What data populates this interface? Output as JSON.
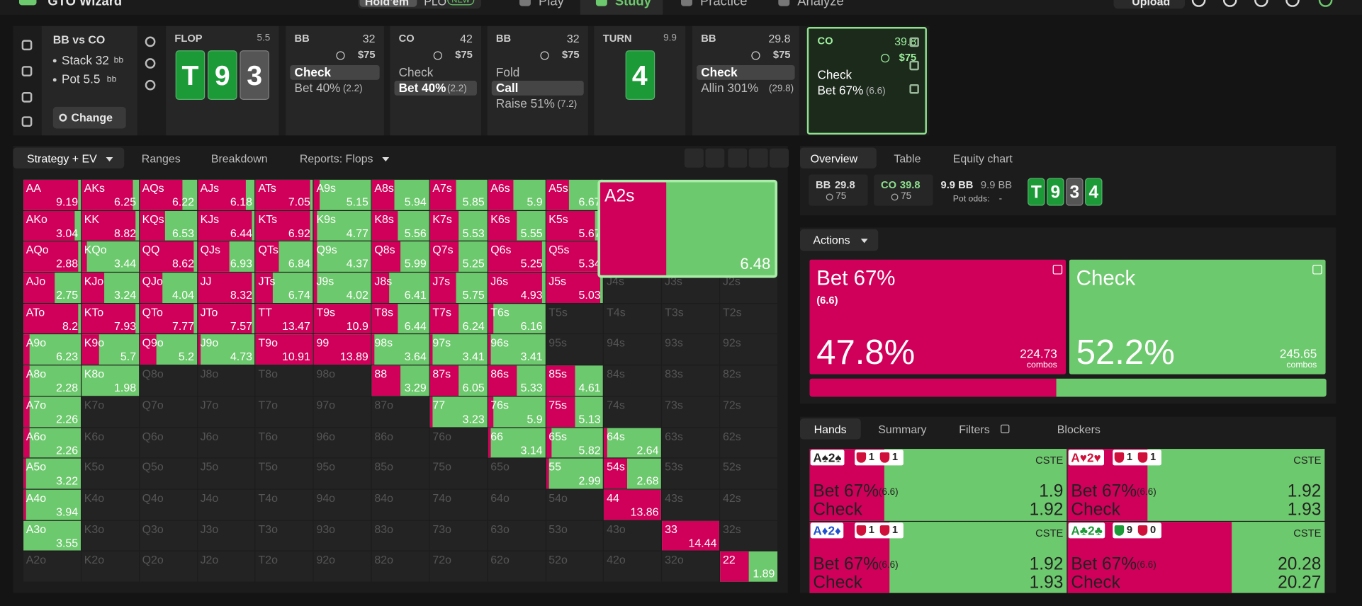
{
  "topbar": {
    "brand": "GTO Wizard",
    "modes": [
      "Hold'em",
      "PLO"
    ],
    "badge": "NEW",
    "nav": [
      "Play",
      "Study",
      "Practice",
      "Analyze"
    ],
    "upload": "Upload"
  },
  "spot": {
    "title": "BB vs CO",
    "stack": "Stack 32",
    "pot": "Pot 5.5",
    "unit": "bb",
    "button": "Change"
  },
  "line": [
    {
      "street": "FLOP",
      "pot": 5.5,
      "cards": [
        {
          "rank": "T",
          "color": "#1c9a38"
        },
        {
          "rank": "9",
          "color": "#1c9a38"
        },
        {
          "rank": "3",
          "color": "#555555"
        }
      ]
    },
    {
      "player": "BB",
      "stack": 32,
      "bet": "$75",
      "actions": [
        {
          "label": "Check",
          "selected": true
        },
        {
          "label": "Bet 40%",
          "size": "(2.2)"
        }
      ]
    },
    {
      "player": "CO",
      "stack": 42,
      "bet": "$75",
      "actions": [
        {
          "label": "Check"
        },
        {
          "label": "Bet 40%",
          "size": "(2.2)",
          "selected": true
        }
      ]
    },
    {
      "player": "BB",
      "stack": 32,
      "bet": "$75",
      "actions": [
        {
          "label": "Fold"
        },
        {
          "label": "Call",
          "selected": true
        },
        {
          "label": "Raise 51%",
          "size": "(7.2)"
        }
      ]
    },
    {
      "street": "TURN",
      "pot": 9.9,
      "cards": [
        {
          "rank": "4",
          "color": "#1c9a38"
        }
      ]
    },
    {
      "player": "BB",
      "stack": 29.8,
      "bet": "$75",
      "actions": [
        {
          "label": "Check",
          "selected": true
        },
        {
          "label": "Allin 301%",
          "size": "(29.8)"
        }
      ]
    },
    {
      "player": "CO",
      "stack": 39.8,
      "bet": "$75",
      "current": true,
      "actions": [
        {
          "label": "Check"
        },
        {
          "label": "Bet 67%",
          "size": "(6.6)"
        }
      ]
    }
  ],
  "strategy": {
    "tabs": [
      "Strategy + EV",
      "Ranges",
      "Breakdown",
      "Reports: Flops"
    ],
    "bet_color": "#d0005a",
    "check_color": "#6dc96d",
    "grid": [
      [
        {
          "hand": "AA",
          "ev": 9.19,
          "bet": 95
        },
        {
          "hand": "AKs",
          "ev": 6.25,
          "bet": 90
        },
        {
          "hand": "AQs",
          "ev": 6.22,
          "bet": 75
        },
        {
          "hand": "AJs",
          "ev": 6.18,
          "bet": 85
        },
        {
          "hand": "ATs",
          "ev": 7.05,
          "bet": 95
        },
        {
          "hand": "A9s",
          "ev": 5.15,
          "bet": 10
        },
        {
          "hand": "A8s",
          "ev": 5.94,
          "bet": 40
        },
        {
          "hand": "A7s",
          "ev": 5.85,
          "bet": 45
        },
        {
          "hand": "A6s",
          "ev": 5.9,
          "bet": 45
        },
        {
          "hand": "A5s",
          "ev": 6.67,
          "bet": 40
        },
        null,
        null,
        null
      ],
      [
        {
          "hand": "AKo",
          "ev": 3.04,
          "bet": 90
        },
        {
          "hand": "KK",
          "ev": 8.82,
          "bet": 95
        },
        {
          "hand": "KQs",
          "ev": 6.53,
          "bet": 45
        },
        {
          "hand": "KJs",
          "ev": 6.44,
          "bet": 95
        },
        {
          "hand": "KTs",
          "ev": 6.92,
          "bet": 95
        },
        {
          "hand": "K9s",
          "ev": 4.77,
          "bet": 5
        },
        {
          "hand": "K8s",
          "ev": 5.56,
          "bet": 45
        },
        {
          "hand": "K7s",
          "ev": 5.53,
          "bet": 50
        },
        {
          "hand": "K6s",
          "ev": 5.55,
          "bet": 50
        },
        {
          "hand": "K5s",
          "ev": 5.67,
          "bet": 85
        },
        null,
        null,
        null
      ],
      [
        {
          "hand": "AQo",
          "ev": 2.88,
          "bet": 95
        },
        {
          "hand": "KQo",
          "ev": 3.44,
          "bet": 10
        },
        {
          "hand": "QQ",
          "ev": 8.62,
          "bet": 95
        },
        {
          "hand": "QJs",
          "ev": 6.93,
          "bet": 55
        },
        {
          "hand": "QTs",
          "ev": 6.84,
          "bet": 40
        },
        {
          "hand": "Q9s",
          "ev": 4.37,
          "bet": 5
        },
        {
          "hand": "Q8s",
          "ev": 5.99,
          "bet": 50
        },
        {
          "hand": "Q7s",
          "ev": 5.25,
          "bet": 50
        },
        {
          "hand": "Q6s",
          "ev": 5.25,
          "bet": 95
        },
        {
          "hand": "Q5s",
          "ev": 5.34,
          "bet": 95
        },
        null,
        null,
        null
      ],
      [
        {
          "hand": "AJo",
          "ev": 2.75,
          "bet": 55
        },
        {
          "hand": "KJo",
          "ev": 3.24,
          "bet": 40
        },
        {
          "hand": "QJo",
          "ev": 4.04,
          "bet": 40
        },
        {
          "hand": "JJ",
          "ev": 8.32,
          "bet": 95
        },
        {
          "hand": "JTs",
          "ev": 6.74,
          "bet": 30
        },
        {
          "hand": "J9s",
          "ev": 4.02,
          "bet": 5
        },
        {
          "hand": "J8s",
          "ev": 6.41,
          "bet": 30
        },
        {
          "hand": "J7s",
          "ev": 5.75,
          "bet": 45
        },
        {
          "hand": "J6s",
          "ev": 4.93,
          "bet": 95
        },
        {
          "hand": "J5s",
          "ev": 5.03,
          "bet": 95
        },
        {
          "hand": "J4s"
        },
        {
          "hand": "J3s"
        },
        {
          "hand": "J2s"
        }
      ],
      [
        {
          "hand": "ATo",
          "ev": 8.2,
          "bet": 95
        },
        {
          "hand": "KTo",
          "ev": 7.93,
          "bet": 95
        },
        {
          "hand": "QTo",
          "ev": 7.77,
          "bet": 95
        },
        {
          "hand": "JTo",
          "ev": 7.57,
          "bet": 95
        },
        {
          "hand": "TT",
          "ev": 13.47,
          "bet": 100
        },
        {
          "hand": "T9s",
          "ev": 10.9,
          "bet": 100
        },
        {
          "hand": "T8s",
          "ev": 6.44,
          "bet": 45
        },
        {
          "hand": "T7s",
          "ev": 6.24,
          "bet": 50
        },
        {
          "hand": "T6s",
          "ev": 6.16,
          "bet": 10
        },
        {
          "hand": "T5s"
        },
        {
          "hand": "T4s"
        },
        {
          "hand": "T3s"
        },
        {
          "hand": "T2s"
        }
      ],
      [
        {
          "hand": "A9o",
          "ev": 6.23,
          "bet": 10
        },
        {
          "hand": "K9o",
          "ev": 5.7,
          "bet": 30
        },
        {
          "hand": "Q9o",
          "ev": 5.2,
          "bet": 30
        },
        {
          "hand": "J9o",
          "ev": 4.73,
          "bet": 5
        },
        {
          "hand": "T9o",
          "ev": 10.91,
          "bet": 100
        },
        {
          "hand": "99",
          "ev": 13.89,
          "bet": 100
        },
        {
          "hand": "98s",
          "ev": 3.64,
          "bet": 5
        },
        {
          "hand": "97s",
          "ev": 3.41,
          "bet": 5
        },
        {
          "hand": "96s",
          "ev": 3.41,
          "bet": 5
        },
        {
          "hand": "95s"
        },
        {
          "hand": "94s"
        },
        {
          "hand": "93s"
        },
        {
          "hand": "92s"
        }
      ],
      [
        {
          "hand": "A8o",
          "ev": 2.28,
          "bet": 10
        },
        {
          "hand": "K8o",
          "ev": 1.98,
          "bet": 0
        },
        {
          "hand": "Q8o"
        },
        {
          "hand": "J8o"
        },
        {
          "hand": "T8o"
        },
        {
          "hand": "98o"
        },
        {
          "hand": "88",
          "ev": 3.29,
          "bet": 50
        },
        {
          "hand": "87s",
          "ev": 6.05,
          "bet": 50
        },
        {
          "hand": "86s",
          "ev": 5.33,
          "bet": 50
        },
        {
          "hand": "85s",
          "ev": 4.61,
          "bet": 50
        },
        {
          "hand": "84s"
        },
        {
          "hand": "83s"
        },
        {
          "hand": "82s"
        }
      ],
      [
        {
          "hand": "A7o",
          "ev": 2.26,
          "bet": 10
        },
        {
          "hand": "K7o"
        },
        {
          "hand": "Q7o"
        },
        {
          "hand": "J7o"
        },
        {
          "hand": "T7o"
        },
        {
          "hand": "97o"
        },
        {
          "hand": "87o"
        },
        {
          "hand": "77",
          "ev": 3.23,
          "bet": 5
        },
        {
          "hand": "76s",
          "ev": 5.9,
          "bet": 10
        },
        {
          "hand": "75s",
          "ev": 5.13,
          "bet": 50
        },
        {
          "hand": "74s"
        },
        {
          "hand": "73s"
        },
        {
          "hand": "72s"
        }
      ],
      [
        {
          "hand": "A6o",
          "ev": 2.26,
          "bet": 10
        },
        {
          "hand": "K6o"
        },
        {
          "hand": "Q6o"
        },
        {
          "hand": "J6o"
        },
        {
          "hand": "T6o"
        },
        {
          "hand": "96o"
        },
        {
          "hand": "86o"
        },
        {
          "hand": "76o"
        },
        {
          "hand": "66",
          "ev": 3.14,
          "bet": 5
        },
        {
          "hand": "65s",
          "ev": 5.82,
          "bet": 10
        },
        {
          "hand": "64s",
          "ev": 2.64,
          "bet": 5
        },
        {
          "hand": "63s"
        },
        {
          "hand": "62s"
        }
      ],
      [
        {
          "hand": "A5o",
          "ev": 3.22,
          "bet": 5
        },
        {
          "hand": "K5o"
        },
        {
          "hand": "Q5o"
        },
        {
          "hand": "J5o"
        },
        {
          "hand": "T5o"
        },
        {
          "hand": "95o"
        },
        {
          "hand": "85o"
        },
        {
          "hand": "75o"
        },
        {
          "hand": "65o"
        },
        {
          "hand": "55",
          "ev": 2.99,
          "bet": 5
        },
        {
          "hand": "54s",
          "ev": 2.68,
          "bet": 40
        },
        {
          "hand": "53s"
        },
        {
          "hand": "52s"
        }
      ],
      [
        {
          "hand": "A4o",
          "ev": 3.94,
          "bet": 5
        },
        {
          "hand": "K4o"
        },
        {
          "hand": "Q4o"
        },
        {
          "hand": "J4o"
        },
        {
          "hand": "T4o"
        },
        {
          "hand": "94o"
        },
        {
          "hand": "84o"
        },
        {
          "hand": "74o"
        },
        {
          "hand": "64o"
        },
        {
          "hand": "54o"
        },
        {
          "hand": "44",
          "ev": 13.86,
          "bet": 100
        },
        {
          "hand": "43s"
        },
        {
          "hand": "42s"
        }
      ],
      [
        {
          "hand": "A3o",
          "ev": 3.55,
          "bet": 0
        },
        {
          "hand": "K3o"
        },
        {
          "hand": "Q3o"
        },
        {
          "hand": "J3o"
        },
        {
          "hand": "T3o"
        },
        {
          "hand": "93o"
        },
        {
          "hand": "83o"
        },
        {
          "hand": "73o"
        },
        {
          "hand": "63o"
        },
        {
          "hand": "53o"
        },
        {
          "hand": "43o"
        },
        {
          "hand": "33",
          "ev": 14.44,
          "bet": 100
        },
        {
          "hand": "32s"
        }
      ],
      [
        {
          "hand": "A2o"
        },
        {
          "hand": "K2o"
        },
        {
          "hand": "Q2o"
        },
        {
          "hand": "J2o"
        },
        {
          "hand": "T2o"
        },
        {
          "hand": "92o"
        },
        {
          "hand": "82o"
        },
        {
          "hand": "72o"
        },
        {
          "hand": "62o"
        },
        {
          "hand": "52o"
        },
        {
          "hand": "42o"
        },
        {
          "hand": "32o"
        },
        {
          "hand": "22",
          "ev": 1.89,
          "bet": 50
        }
      ]
    ],
    "popup": {
      "hand": "A2s",
      "ev": 6.48,
      "bet": 38
    }
  },
  "overview": {
    "tabs": [
      "Overview",
      "Table",
      "Equity chart"
    ],
    "players": [
      {
        "name": "BB",
        "stack": 29.8,
        "bet": 75
      },
      {
        "name": "CO",
        "stack": 39.8,
        "bet": 75
      }
    ],
    "pot": "9.9 BB",
    "pot2": "9.9 BB",
    "pot_odds_label": "Pot odds:",
    "pot_odds": "-",
    "board": [
      {
        "rank": "T",
        "color": "#1c9a38"
      },
      {
        "rank": "9",
        "color": "#1c9a38"
      },
      {
        "rank": "3",
        "color": "#555555"
      },
      {
        "rank": "4",
        "color": "#1c9a38"
      }
    ]
  },
  "actions": {
    "title": "Actions",
    "items": [
      {
        "name": "Bet 67%",
        "size": "(6.6)",
        "freq": 47.8,
        "freq_label": "47.8%",
        "combos": 224.73,
        "combos_label": "combos",
        "color": "#d0005a"
      },
      {
        "name": "Check",
        "freq": 52.2,
        "freq_label": "52.2%",
        "combos": 245.65,
        "combos_label": "combos",
        "color": "#6dc96d"
      }
    ]
  },
  "hands": {
    "tabs": [
      "Hands",
      "Summary",
      "Filters",
      "Blockers"
    ],
    "items": [
      {
        "cards": "A♠2♠",
        "color": "#222222",
        "blockers": [
          {
            "n": 1,
            "color": "#d0103a"
          },
          {
            "n": 1,
            "color": "#d0103a"
          }
        ],
        "tag": "CSTE",
        "bet": 29,
        "rows": [
          {
            "label": "Bet 67%",
            "size": "(6.6)",
            "ev": 1.9
          },
          {
            "label": "Check",
            "ev": 1.92
          }
        ]
      },
      {
        "cards": "A♥2♥",
        "color": "#d0103a",
        "blockers": [
          {
            "n": 1,
            "color": "#d0103a"
          },
          {
            "n": 1,
            "color": "#d0103a"
          }
        ],
        "tag": "CSTE",
        "bet": 31,
        "rows": [
          {
            "label": "Bet 67%",
            "size": "(6.6)",
            "ev": 1.92
          },
          {
            "label": "Check",
            "ev": 1.93
          }
        ]
      },
      {
        "cards": "A♦2♦",
        "color": "#1f52d0",
        "blockers": [
          {
            "n": 1,
            "color": "#d0103a"
          },
          {
            "n": 1,
            "color": "#d0103a"
          }
        ],
        "tag": "CSTE",
        "bet": 31,
        "rows": [
          {
            "label": "Bet 67%",
            "size": "(6.6)",
            "ev": 1.92
          },
          {
            "label": "Check",
            "ev": 1.93
          }
        ]
      },
      {
        "cards": "A♣2♣",
        "color": "#1c9a38",
        "blockers": [
          {
            "n": 9,
            "color": "#1c9a38"
          },
          {
            "n": 0,
            "color": "#d0103a"
          }
        ],
        "tag": "CSTE",
        "bet": 64,
        "rows": [
          {
            "label": "Bet 67%",
            "size": "(6.6)",
            "ev": 20.28
          },
          {
            "label": "Check",
            "ev": 20.27
          }
        ]
      }
    ]
  }
}
